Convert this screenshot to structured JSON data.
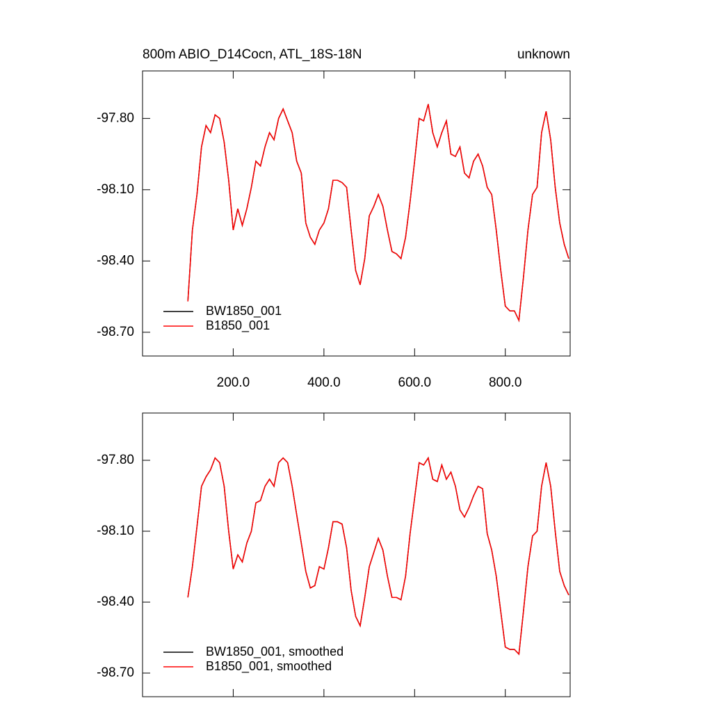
{
  "chart_data": [
    {
      "type": "line",
      "title": "800m ABIO_D14Cocn, ATL_18S-18N",
      "title_right": "unknown",
      "x": [
        100,
        110,
        120,
        130,
        140,
        150,
        160,
        170,
        180,
        190,
        200,
        210,
        220,
        230,
        240,
        250,
        260,
        270,
        280,
        290,
        300,
        310,
        320,
        330,
        340,
        350,
        360,
        370,
        380,
        390,
        400,
        410,
        420,
        430,
        440,
        450,
        460,
        470,
        480,
        490,
        500,
        510,
        520,
        530,
        540,
        550,
        560,
        570,
        580,
        590,
        600,
        610,
        620,
        630,
        640,
        650,
        660,
        670,
        680,
        690,
        700,
        710,
        720,
        730,
        740,
        750,
        760,
        770,
        780,
        790,
        800,
        810,
        820,
        830,
        840,
        850,
        860,
        870,
        880,
        890,
        900,
        910,
        920,
        930,
        940
      ],
      "series": [
        {
          "name": "BW1850_001",
          "color": "#000000",
          "values": [
            -98.57,
            -98.27,
            -98.12,
            -97.92,
            -97.83,
            -97.86,
            -97.785,
            -97.8,
            -97.9,
            -98.06,
            -98.27,
            -98.18,
            -98.25,
            -98.18,
            -98.09,
            -97.98,
            -98.0,
            -97.92,
            -97.86,
            -97.89,
            -97.8,
            -97.76,
            -97.81,
            -97.86,
            -97.98,
            -98.03,
            -98.24,
            -98.3,
            -98.33,
            -98.27,
            -98.24,
            -98.18,
            -98.06,
            -98.06,
            -98.07,
            -98.09,
            -98.27,
            -98.44,
            -98.5,
            -98.39,
            -98.21,
            -98.17,
            -98.12,
            -98.17,
            -98.27,
            -98.36,
            -98.37,
            -98.39,
            -98.3,
            -98.15,
            -97.98,
            -97.8,
            -97.81,
            -97.74,
            -97.86,
            -97.92,
            -97.86,
            -97.81,
            -97.95,
            -97.96,
            -97.92,
            -98.03,
            -98.05,
            -97.98,
            -97.95,
            -98.0,
            -98.09,
            -98.12,
            -98.27,
            -98.44,
            -98.59,
            -98.61,
            -98.61,
            -98.65,
            -98.47,
            -98.27,
            -98.12,
            -98.09,
            -97.86,
            -97.77,
            -97.89,
            -98.09,
            -98.24,
            -98.33,
            -98.39
          ]
        },
        {
          "name": "B1850_001",
          "color": "#ff0000",
          "values": [
            -98.57,
            -98.27,
            -98.12,
            -97.92,
            -97.83,
            -97.86,
            -97.785,
            -97.8,
            -97.9,
            -98.06,
            -98.27,
            -98.18,
            -98.25,
            -98.18,
            -98.09,
            -97.98,
            -98.0,
            -97.92,
            -97.86,
            -97.89,
            -97.8,
            -97.76,
            -97.81,
            -97.86,
            -97.98,
            -98.03,
            -98.24,
            -98.3,
            -98.33,
            -98.27,
            -98.24,
            -98.18,
            -98.06,
            -98.06,
            -98.07,
            -98.09,
            -98.27,
            -98.44,
            -98.5,
            -98.39,
            -98.21,
            -98.17,
            -98.12,
            -98.17,
            -98.27,
            -98.36,
            -98.37,
            -98.39,
            -98.3,
            -98.15,
            -97.98,
            -97.8,
            -97.81,
            -97.74,
            -97.86,
            -97.92,
            -97.86,
            -97.81,
            -97.95,
            -97.96,
            -97.92,
            -98.03,
            -98.05,
            -97.98,
            -97.95,
            -98.0,
            -98.09,
            -98.12,
            -98.27,
            -98.44,
            -98.59,
            -98.61,
            -98.61,
            -98.65,
            -98.47,
            -98.27,
            -98.12,
            -98.09,
            -97.86,
            -97.77,
            -97.89,
            -98.09,
            -98.24,
            -98.33,
            -98.39
          ]
        }
      ],
      "xlim": [
        0,
        943
      ],
      "ylim": [
        -98.8,
        -97.6
      ],
      "xticks": [
        {
          "value": 200,
          "label": "200.0"
        },
        {
          "value": 400,
          "label": "400.0"
        },
        {
          "value": 600,
          "label": "600.0"
        },
        {
          "value": 800,
          "label": "800.0"
        }
      ],
      "yticks": [
        {
          "value": -97.8,
          "label": "-97.80"
        },
        {
          "value": -98.1,
          "label": "-98.10"
        },
        {
          "value": -98.4,
          "label": "-98.40"
        },
        {
          "value": -98.7,
          "label": "-98.70"
        }
      ],
      "legend": "lower left"
    },
    {
      "type": "line",
      "x": [
        100,
        110,
        120,
        130,
        140,
        150,
        160,
        170,
        180,
        190,
        200,
        210,
        220,
        230,
        240,
        250,
        260,
        270,
        280,
        290,
        300,
        310,
        320,
        330,
        340,
        350,
        360,
        370,
        380,
        390,
        400,
        410,
        420,
        430,
        440,
        450,
        460,
        470,
        480,
        490,
        500,
        510,
        520,
        530,
        540,
        550,
        560,
        570,
        580,
        590,
        600,
        610,
        620,
        630,
        640,
        650,
        660,
        670,
        680,
        690,
        700,
        710,
        720,
        730,
        740,
        750,
        760,
        770,
        780,
        790,
        800,
        810,
        820,
        830,
        840,
        850,
        860,
        870,
        880,
        890,
        900,
        910,
        920,
        930,
        940
      ],
      "series": [
        {
          "name": "BW1850_001, smoothed",
          "color": "#000000",
          "values": [
            -98.38,
            -98.25,
            -98.08,
            -97.91,
            -97.87,
            -97.84,
            -97.79,
            -97.81,
            -97.91,
            -98.1,
            -98.26,
            -98.2,
            -98.23,
            -98.15,
            -98.1,
            -97.98,
            -97.97,
            -97.91,
            -97.88,
            -97.91,
            -97.81,
            -97.79,
            -97.81,
            -97.91,
            -98.03,
            -98.15,
            -98.27,
            -98.34,
            -98.33,
            -98.25,
            -98.26,
            -98.17,
            -98.06,
            -98.06,
            -98.07,
            -98.17,
            -98.35,
            -98.46,
            -98.5,
            -98.38,
            -98.25,
            -98.19,
            -98.13,
            -98.18,
            -98.29,
            -98.38,
            -98.38,
            -98.39,
            -98.29,
            -98.11,
            -97.96,
            -97.81,
            -97.82,
            -97.79,
            -97.88,
            -97.89,
            -97.82,
            -97.88,
            -97.85,
            -97.91,
            -98.01,
            -98.04,
            -98.0,
            -97.95,
            -97.91,
            -97.92,
            -98.11,
            -98.18,
            -98.29,
            -98.44,
            -98.59,
            -98.6,
            -98.6,
            -98.62,
            -98.44,
            -98.25,
            -98.12,
            -98.1,
            -97.91,
            -97.81,
            -97.91,
            -98.1,
            -98.27,
            -98.33,
            -98.37
          ]
        },
        {
          "name": "B1850_001, smoothed",
          "color": "#ff0000",
          "values": [
            -98.38,
            -98.25,
            -98.08,
            -97.91,
            -97.87,
            -97.84,
            -97.79,
            -97.81,
            -97.91,
            -98.1,
            -98.26,
            -98.2,
            -98.23,
            -98.15,
            -98.1,
            -97.98,
            -97.97,
            -97.91,
            -97.88,
            -97.91,
            -97.81,
            -97.79,
            -97.81,
            -97.91,
            -98.03,
            -98.15,
            -98.27,
            -98.34,
            -98.33,
            -98.25,
            -98.26,
            -98.17,
            -98.06,
            -98.06,
            -98.07,
            -98.17,
            -98.35,
            -98.46,
            -98.5,
            -98.38,
            -98.25,
            -98.19,
            -98.13,
            -98.18,
            -98.29,
            -98.38,
            -98.38,
            -98.39,
            -98.29,
            -98.11,
            -97.96,
            -97.81,
            -97.82,
            -97.79,
            -97.88,
            -97.89,
            -97.82,
            -97.88,
            -97.85,
            -97.91,
            -98.01,
            -98.04,
            -98.0,
            -97.95,
            -97.91,
            -97.92,
            -98.11,
            -98.18,
            -98.29,
            -98.44,
            -98.59,
            -98.6,
            -98.6,
            -98.62,
            -98.44,
            -98.25,
            -98.12,
            -98.1,
            -97.91,
            -97.81,
            -97.91,
            -98.1,
            -98.27,
            -98.33,
            -98.37
          ]
        }
      ],
      "xlim": [
        0,
        943
      ],
      "ylim": [
        -98.8,
        -97.6
      ],
      "xticks": [
        200,
        400,
        600,
        800
      ],
      "yticks": [
        {
          "value": -97.8,
          "label": "-97.80"
        },
        {
          "value": -98.1,
          "label": "-98.10"
        },
        {
          "value": -98.4,
          "label": "-98.40"
        },
        {
          "value": -98.7,
          "label": "-98.70"
        }
      ],
      "legend": "lower left"
    }
  ]
}
